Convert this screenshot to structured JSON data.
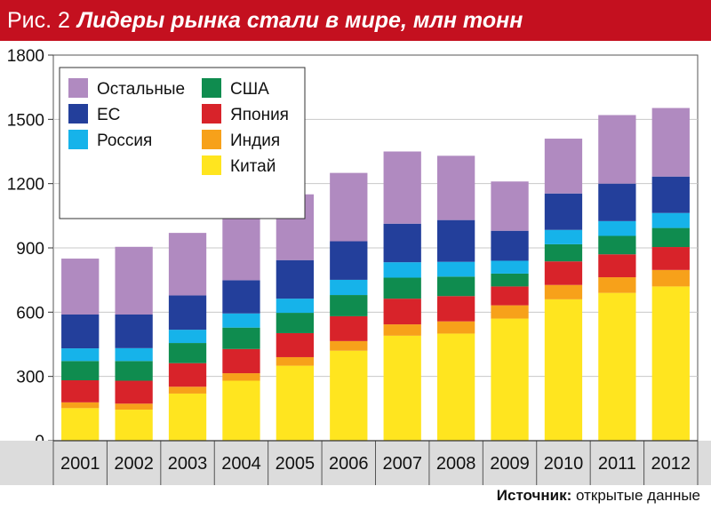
{
  "figure": {
    "prefix": "Рис. 2",
    "title": "Лидеры рынка стали в мире, млн тонн"
  },
  "source": {
    "label": "Источник:",
    "text": "открытые данные"
  },
  "chart_data": {
    "type": "bar",
    "stacked": true,
    "categories": [
      "2001",
      "2002",
      "2003",
      "2004",
      "2005",
      "2006",
      "2007",
      "2008",
      "2009",
      "2010",
      "2011",
      "2012"
    ],
    "ylim": [
      0,
      1800
    ],
    "yticks": [
      0,
      300,
      600,
      900,
      1200,
      1500,
      1800
    ],
    "grid": true,
    "legend_position": "top-left",
    "series": [
      {
        "name": "Китай",
        "color": "#ffe51f",
        "values": [
          152,
          145,
          220,
          280,
          350,
          420,
          490,
          500,
          570,
          660,
          690,
          720
        ]
      },
      {
        "name": "Индия",
        "color": "#f7a11a",
        "values": [
          27,
          28,
          32,
          35,
          40,
          45,
          53,
          57,
          62,
          67,
          73,
          77
        ]
      },
      {
        "name": "Япония",
        "color": "#d8232a",
        "values": [
          103,
          107,
          110,
          113,
          112,
          116,
          120,
          118,
          88,
          110,
          107,
          107
        ]
      },
      {
        "name": "США",
        "color": "#0f8c4f",
        "values": [
          90,
          92,
          94,
          100,
          95,
          99,
          98,
          91,
          60,
          80,
          86,
          89
        ]
      },
      {
        "name": "Россия",
        "color": "#16b3ea",
        "values": [
          59,
          60,
          62,
          66,
          66,
          71,
          72,
          69,
          60,
          67,
          69,
          70
        ]
      },
      {
        "name": "ЕС",
        "color": "#233f9b",
        "values": [
          158,
          157,
          160,
          155,
          180,
          180,
          180,
          195,
          140,
          170,
          175,
          170
        ]
      },
      {
        "name": "Остальные",
        "color": "#b08ac0",
        "values": [
          261,
          316,
          292,
          321,
          307,
          319,
          337,
          300,
          230,
          256,
          320,
          320
        ]
      }
    ]
  }
}
